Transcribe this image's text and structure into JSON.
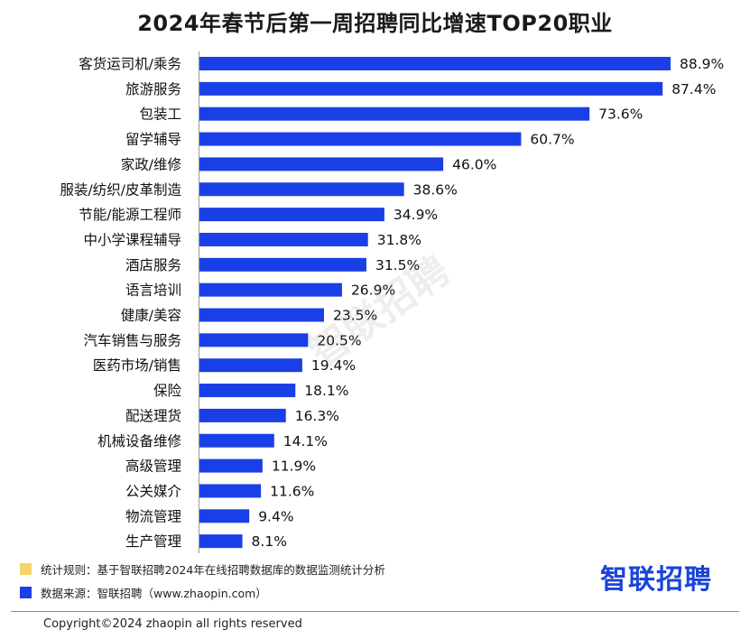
{
  "chart_data": {
    "type": "bar",
    "orientation": "horizontal",
    "title": "2024年春节后第一周招聘同比增速TOP20职业",
    "categories": [
      "客货运司机/乘务",
      "旅游服务",
      "包装工",
      "留学辅导",
      "家政/维修",
      "服装/纺织/皮革制造",
      "节能/能源工程师",
      "中小学课程辅导",
      "酒店服务",
      "语言培训",
      "健康/美容",
      "汽车销售与服务",
      "医药市场/销售",
      "保险",
      "配送理货",
      "机械设备维修",
      "高级管理",
      "公关媒介",
      "物流管理",
      "生产管理"
    ],
    "values": [
      88.9,
      87.4,
      73.6,
      60.7,
      46.0,
      38.6,
      34.9,
      31.8,
      31.5,
      26.9,
      23.5,
      20.5,
      19.4,
      18.1,
      16.3,
      14.1,
      11.9,
      11.6,
      9.4,
      8.1
    ],
    "value_labels": [
      "88.9%",
      "87.4%",
      "73.6%",
      "60.7%",
      "46.0%",
      "38.6%",
      "34.9%",
      "31.8%",
      "31.5%",
      "26.9%",
      "23.5%",
      "20.5%",
      "19.4%",
      "18.1%",
      "16.3%",
      "14.1%",
      "11.9%",
      "11.6%",
      "9.4%",
      "8.1%"
    ],
    "bar_color": "#1b3fe6",
    "xlim": [
      0,
      90
    ]
  },
  "watermark": "智联招聘",
  "legend": {
    "rule": {
      "text": "统计规则：基于智联招聘2024年在线招聘数据库的数据监测统计分析",
      "color": "#f7d36b"
    },
    "source": {
      "text": "数据来源：智联招聘（www.zhaopin.com）",
      "color": "#1b3fe6"
    }
  },
  "brand": "智联招聘",
  "copyright": "Copyright©2024 zhaopin all rights reserved"
}
